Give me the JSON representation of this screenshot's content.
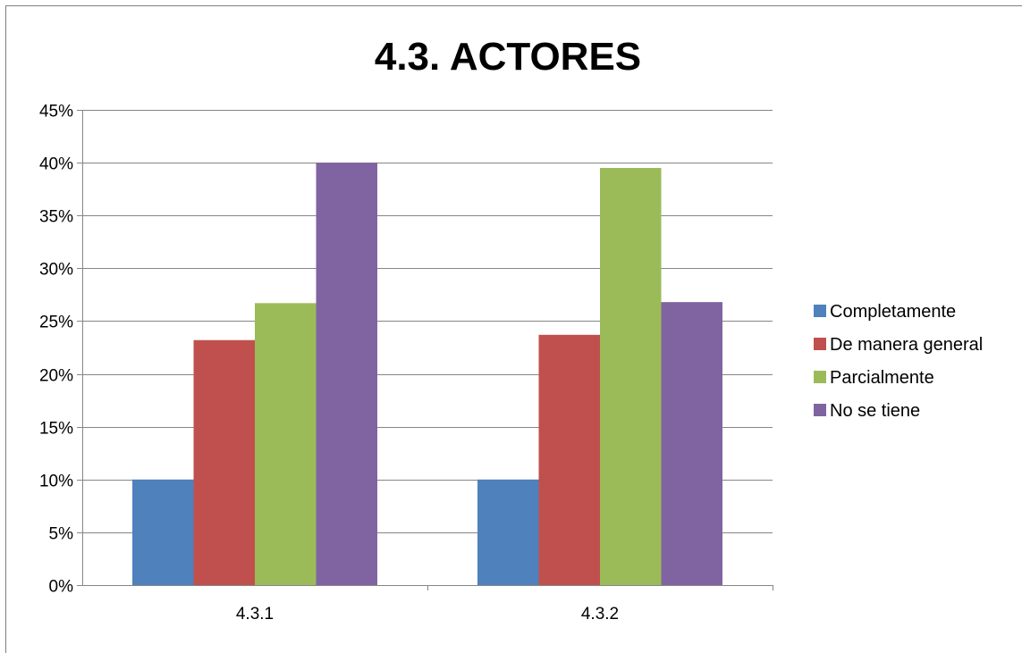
{
  "chart_data": {
    "type": "bar",
    "title": "4.3. ACTORES",
    "xlabel": "",
    "ylabel": "",
    "categories": [
      "4.3.1",
      "4.3.2"
    ],
    "series": [
      {
        "name": "Completamente",
        "color": "#4f81bd",
        "values": [
          0.1,
          0.1
        ]
      },
      {
        "name": "De manera general",
        "color": "#c0504d",
        "values": [
          0.232,
          0.237
        ]
      },
      {
        "name": "Parcialmente",
        "color": "#9bbb59",
        "values": [
          0.267,
          0.395
        ]
      },
      {
        "name": "No se tiene",
        "color": "#8064a2",
        "values": [
          0.4,
          0.268
        ]
      }
    ],
    "ylim": [
      0,
      0.45
    ],
    "yticks": [
      0,
      0.05,
      0.1,
      0.15,
      0.2,
      0.25,
      0.3,
      0.35,
      0.4,
      0.45
    ],
    "ytick_labels": [
      "0%",
      "5%",
      "10%",
      "15%",
      "20%",
      "25%",
      "30%",
      "35%",
      "40%",
      "45%"
    ],
    "grid": true,
    "legend_position": "right"
  }
}
